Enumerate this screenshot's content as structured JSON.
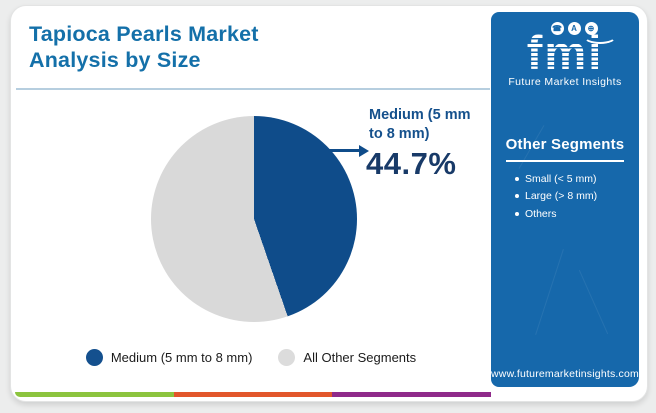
{
  "header": {
    "title": "Tapioca Pearls Market Analysis by Size"
  },
  "chart_data": {
    "type": "pie",
    "title": "Tapioca Pearls Market Analysis by Size",
    "segments": [
      {
        "label": "Medium (5 mm to 8 mm)",
        "value": 44.7,
        "color": "#0f4c8a"
      },
      {
        "label": "All Other Segments",
        "value": 55.3,
        "color": "#d9d9d9"
      }
    ],
    "start_angle_deg": 0,
    "direction": "clockwise",
    "legend_position": "bottom",
    "callout": {
      "label": "Medium (5 mm to 8 mm)",
      "value": "44.7%"
    }
  },
  "callout": {
    "label": "Medium (5 mm to 8 mm)",
    "value": "44.7%"
  },
  "legend": {
    "items": [
      {
        "label": "Medium (5 mm to 8 mm)",
        "color": "#14508e"
      },
      {
        "label": "All Other Segments",
        "color": "#dcdcdc"
      }
    ]
  },
  "sidebar": {
    "bg_color": "#1668ab",
    "logo": {
      "text": "fmi",
      "subtitle": "Future Market Insights",
      "icons": [
        "phone-icon",
        "person-icon",
        "globe-icon"
      ],
      "icon_glyphs": [
        "☎",
        "A",
        "⊕"
      ]
    },
    "other_segments": {
      "heading": "Other Segments",
      "items": [
        "Small (< 5 mm)",
        "Large (> 8 mm)",
        "Others"
      ]
    },
    "website": "www.futuremarketinsights.com"
  },
  "footer": {
    "strip_colors": [
      "#8cc43e",
      "#e2562b",
      "#8f2a8a"
    ]
  }
}
